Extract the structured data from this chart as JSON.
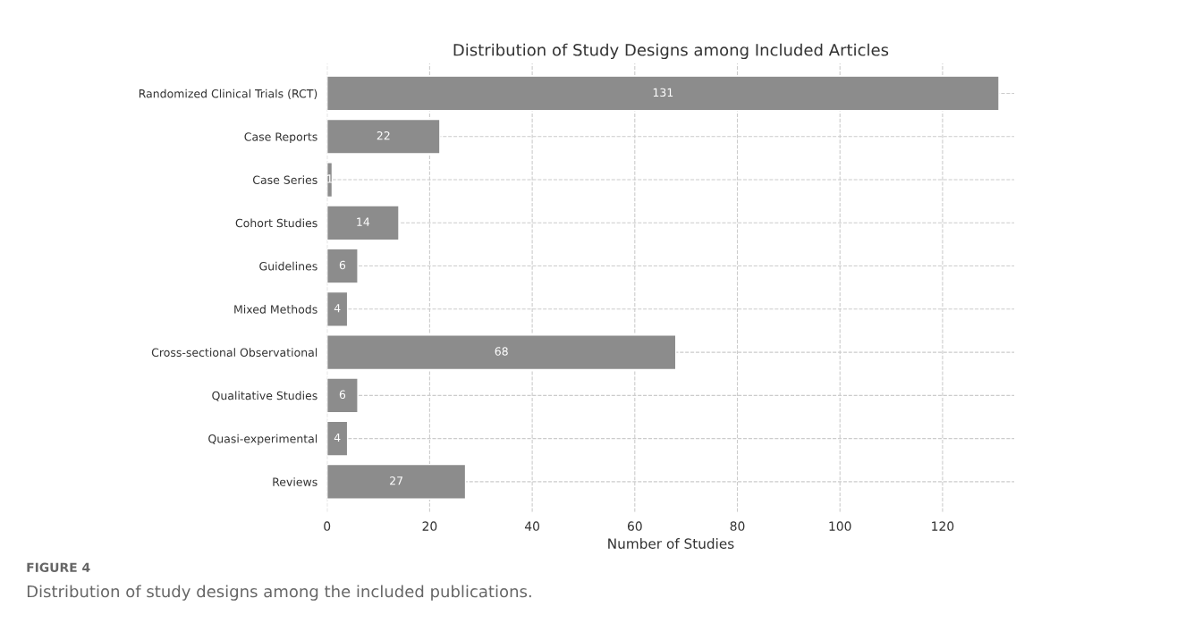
{
  "chart_data": {
    "type": "bar",
    "orientation": "horizontal",
    "title": "Distribution of Study Designs among Included Articles",
    "xlabel": "Number of Studies",
    "categories": [
      "Randomized Clinical Trials (RCT)",
      "Case Reports",
      "Case Series",
      "Cohort Studies",
      "Guidelines",
      "Mixed Methods",
      "Cross-sectional Observational",
      "Qualitative Studies",
      "Quasi-experimental",
      "Reviews"
    ],
    "values": [
      131,
      22,
      1,
      14,
      6,
      4,
      68,
      6,
      4,
      27
    ],
    "color": "#8c8c8c",
    "data_labels": true,
    "xlim": [
      0,
      134
    ],
    "xticks": [
      0,
      20,
      40,
      60,
      80,
      100,
      120
    ],
    "grid": true,
    "annotations": [
      "FIGURE 4",
      "Distribution of study designs among the included publications."
    ]
  }
}
